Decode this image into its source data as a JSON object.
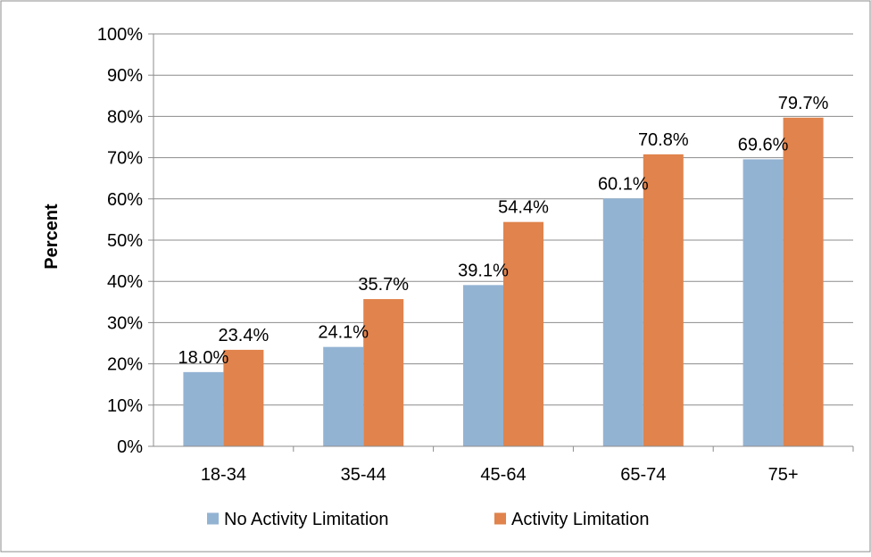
{
  "chart_data": {
    "type": "bar",
    "title": "",
    "xlabel": "",
    "ylabel": "Percent",
    "categories": [
      "18-34",
      "35-44",
      "45-64",
      "65-74",
      "75+"
    ],
    "series": [
      {
        "name": "No Activity Limitation",
        "values": [
          18.0,
          24.1,
          39.1,
          60.1,
          69.6
        ],
        "labels": [
          "18.0%",
          "24.1%",
          "39.1%",
          "60.1%",
          "69.6%"
        ],
        "color": "#93B3D3"
      },
      {
        "name": "Activity Limitation",
        "values": [
          23.4,
          35.7,
          54.4,
          70.8,
          79.7
        ],
        "labels": [
          "23.4%",
          "35.7%",
          "54.4%",
          "70.8%",
          "79.7%"
        ],
        "color": "#E0834C"
      }
    ],
    "ylim": [
      0,
      100
    ],
    "y_ticks": [
      0,
      10,
      20,
      30,
      40,
      50,
      60,
      70,
      80,
      90,
      100
    ],
    "y_tick_labels": [
      "0%",
      "10%",
      "20%",
      "30%",
      "40%",
      "50%",
      "60%",
      "70%",
      "80%",
      "90%",
      "100%"
    ],
    "grid": true,
    "legend_position": "bottom"
  }
}
